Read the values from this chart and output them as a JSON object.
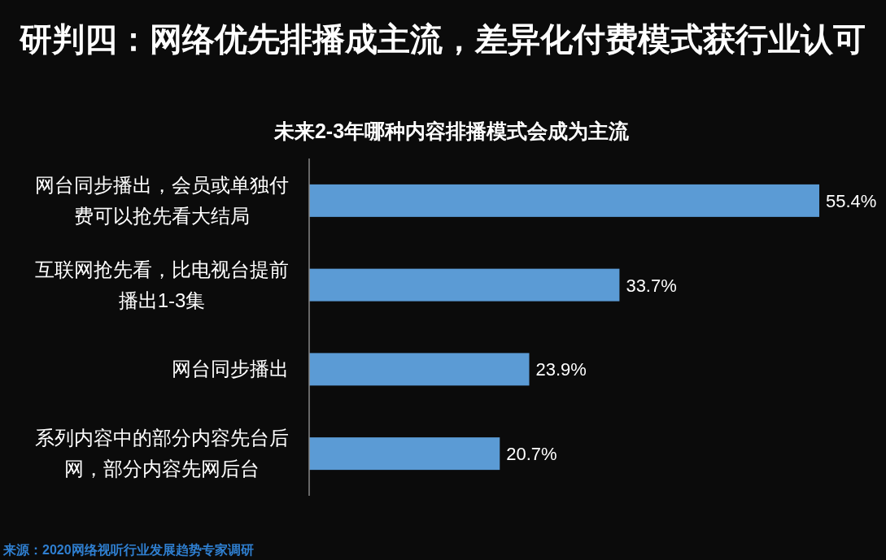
{
  "chart_data": {
    "type": "bar",
    "orientation": "horizontal",
    "title": "研判四：网络优先排播成主流，差异化付费模式获行业认可",
    "subtitle": "未来2-3年哪种内容排播模式会成为主流",
    "categories": [
      "网台同步播出，会员或单独付费可以抢先看大结局",
      "互联网抢先看，比电视台提前播出1-3集",
      "网台同步播出",
      "系列内容中的部分内容先台后网，部分内容先网后台"
    ],
    "values": [
      55.4,
      33.7,
      23.9,
      20.7
    ],
    "color": "#5b9bd5",
    "data_labels": true,
    "value_labels": [
      "55.4%",
      "33.7%",
      "23.9%",
      "20.7%"
    ],
    "annotations": [
      "来源：2020网络视听行业发展趋势专家调研"
    ]
  }
}
